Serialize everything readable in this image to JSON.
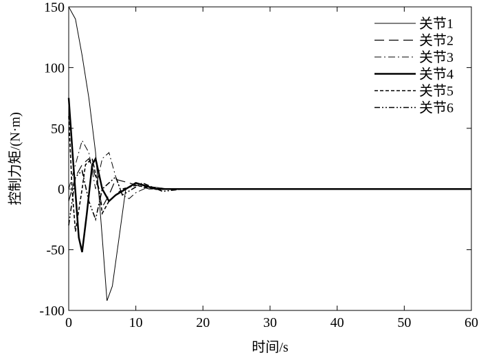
{
  "chart_data": {
    "type": "line",
    "xlabel": "时间/s",
    "ylabel": "控制力矩/(N·m)",
    "xlim": [
      0,
      60
    ],
    "xticks": [
      0,
      10,
      20,
      30,
      40,
      50,
      60
    ],
    "ylim": [
      -100,
      150
    ],
    "yticks": [
      -100,
      -50,
      0,
      50,
      100,
      150
    ],
    "legend": "upper right",
    "series": [
      {
        "name": "关节1",
        "color": "#000000",
        "dash": "none",
        "width": 1,
        "x": [
          0,
          1,
          2,
          3,
          4,
          5,
          5.7,
          6.5,
          7.5,
          8.5,
          10,
          12,
          15,
          60
        ],
        "values": [
          150,
          140,
          110,
          75,
          30,
          -40,
          -92,
          -80,
          -40,
          0,
          5,
          2,
          0,
          0
        ]
      },
      {
        "name": "关节2",
        "color": "#000000",
        "dash": "14,7",
        "width": 1.2,
        "x": [
          0,
          1,
          2,
          3,
          4,
          5,
          6,
          7,
          9,
          12,
          60
        ],
        "values": [
          -10,
          10,
          20,
          25,
          10,
          -15,
          -5,
          8,
          5,
          0,
          0
        ]
      },
      {
        "name": "关节3",
        "color": "#000000",
        "dash": "10,4,2,4",
        "width": 1,
        "x": [
          0,
          2,
          3,
          4,
          5,
          6,
          7,
          8,
          9,
          10,
          12,
          15,
          60
        ],
        "values": [
          0,
          40,
          30,
          0,
          25,
          30,
          10,
          -5,
          -8,
          -3,
          2,
          0,
          0
        ]
      },
      {
        "name": "关节4",
        "color": "#000000",
        "dash": "none",
        "width": 2.5,
        "x": [
          0,
          0.7,
          1.5,
          2,
          2.7,
          3.5,
          4,
          5,
          6,
          7,
          10,
          13,
          60
        ],
        "values": [
          75,
          20,
          -40,
          -52,
          -20,
          20,
          25,
          0,
          -10,
          -5,
          5,
          0,
          0
        ]
      },
      {
        "name": "关节5",
        "color": "#000000",
        "dash": "5,3",
        "width": 1.6,
        "x": [
          0,
          0.5,
          1,
          2,
          2.5,
          3.5,
          4.5,
          5,
          6,
          8,
          10,
          13,
          60
        ],
        "values": [
          60,
          0,
          -35,
          0,
          20,
          25,
          0,
          -20,
          -10,
          0,
          3,
          0,
          0
        ]
      },
      {
        "name": "关节6",
        "color": "#000000",
        "dash": "8,3,2,3,2,3",
        "width": 1.6,
        "x": [
          0,
          1,
          2,
          3,
          4,
          5,
          7,
          8,
          11,
          14,
          17,
          60
        ],
        "values": [
          -30,
          10,
          15,
          -10,
          -25,
          0,
          10,
          -5,
          5,
          -2,
          0,
          0
        ]
      }
    ]
  }
}
